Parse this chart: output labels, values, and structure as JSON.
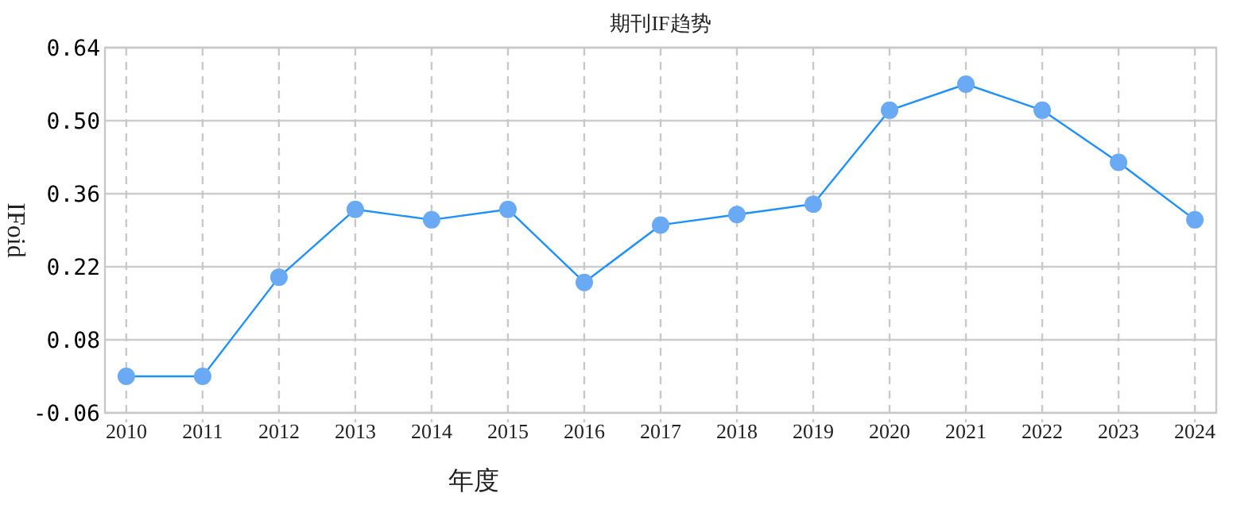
{
  "chart_data": {
    "type": "line",
    "title": "期刊IF趋势",
    "xlabel": "年度",
    "ylabel": "IFoid",
    "categories": [
      "2010",
      "2011",
      "2012",
      "2013",
      "2014",
      "2015",
      "2016",
      "2017",
      "2018",
      "2019",
      "2020",
      "2021",
      "2022",
      "2023",
      "2024"
    ],
    "series": [
      {
        "color": "#1e90ff",
        "values": [
          0.01,
          0.01,
          0.2,
          0.33,
          0.31,
          0.33,
          0.19,
          0.3,
          0.32,
          0.34,
          0.52,
          0.57,
          0.52,
          0.42,
          0.31
        ]
      }
    ],
    "ylim": [
      -0.06,
      0.64
    ],
    "yticks": [
      -0.06,
      0.08,
      0.22,
      0.36,
      {
        "value": 0.5,
        "label": "0.50"
      },
      0.64
    ],
    "grid": true,
    "marker": "circle",
    "line_style": "solid"
  }
}
